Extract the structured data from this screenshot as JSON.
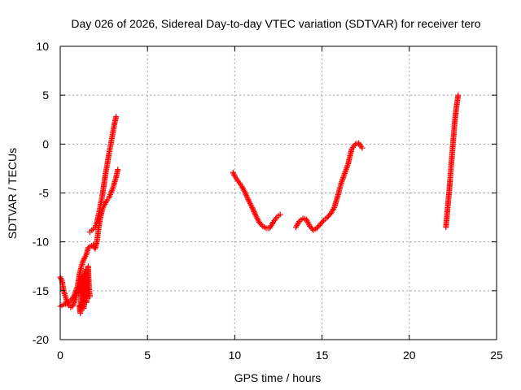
{
  "chart_data": {
    "type": "scatter",
    "title": "Day 026 of 2026, Sidereal Day-to-day VTEC variation (SDTVAR) for receiver tero",
    "xlabel": "GPS time / hours",
    "ylabel": "SDTVAR / TECUs",
    "xlim": [
      0,
      25
    ],
    "ylim": [
      -20,
      10
    ],
    "xticks": [
      "0",
      "5",
      "10",
      "15",
      "20",
      "25"
    ],
    "yticks": [
      "-20",
      "-15",
      "-10",
      "-5",
      "0",
      "5",
      "10"
    ],
    "grid": true,
    "marker": "plus",
    "colors": {
      "series": "#ff0000",
      "grid": "#a0a0a0",
      "axes": "#000000"
    },
    "series": [
      {
        "segments": [
          {
            "x": [
              0.0,
              0.1,
              0.2,
              0.3,
              0.4,
              0.5,
              0.6,
              0.7,
              0.8,
              0.9,
              1.0,
              1.1,
              1.2,
              1.3,
              1.4,
              1.5
            ],
            "y": [
              -13.6,
              -14.0,
              -15.0,
              -15.6,
              -16.2,
              -16.5,
              -16.7,
              -16.6,
              -16.2,
              -15.6,
              -15.0,
              -14.6,
              -14.2,
              -13.8,
              -13.2,
              -12.8
            ]
          },
          {
            "x": [
              0.0,
              0.2,
              0.4,
              0.6,
              0.8,
              1.0,
              1.1,
              1.2,
              1.3,
              1.4,
              1.5,
              1.6,
              1.7,
              1.8,
              1.9,
              2.0,
              2.1,
              2.2,
              2.3,
              2.4,
              2.5,
              2.6,
              2.7,
              2.8,
              2.9,
              3.0,
              3.1,
              3.2,
              3.3
            ],
            "y": [
              -16.6,
              -16.4,
              -16.3,
              -16.0,
              -15.5,
              -14.5,
              -13.3,
              -12.6,
              -12.0,
              -11.6,
              -11.3,
              -10.6,
              -10.5,
              -10.4,
              -10.3,
              -10.7,
              -10.0,
              -8.6,
              -7.5,
              -6.8,
              -6.3,
              -6.0,
              -5.7,
              -5.5,
              -5.0,
              -4.6,
              -4.0,
              -3.4,
              -2.6
            ]
          },
          {
            "x": [
              1.7,
              1.8,
              1.9,
              2.0,
              2.1,
              2.2,
              2.3,
              2.4,
              2.5,
              2.6,
              2.7,
              2.8,
              2.9,
              3.0,
              3.1,
              3.2
            ],
            "y": [
              -9.0,
              -8.8,
              -8.7,
              -8.5,
              -8.0,
              -7.2,
              -6.3,
              -5.4,
              -4.2,
              -3.0,
              -2.0,
              -0.9,
              0.0,
              1.0,
              2.0,
              2.8
            ]
          },
          {
            "x": [
              1.1,
              1.15,
              1.2,
              1.25,
              1.3,
              1.35,
              1.4,
              1.45,
              1.5,
              1.55,
              1.6,
              1.65,
              1.7
            ],
            "y": [
              -16.5,
              -17.3,
              -14.8,
              -13.5,
              -15.8,
              -16.8,
              -15.0,
              -13.2,
              -16.2,
              -14.2,
              -12.5,
              -14.6,
              -15.6
            ]
          },
          {
            "x": [
              9.9,
              10.0,
              10.2,
              10.4,
              10.6,
              10.8,
              11.0,
              11.2,
              11.4,
              11.6,
              11.8,
              12.0,
              12.2,
              12.4,
              12.6
            ],
            "y": [
              -2.9,
              -3.3,
              -3.8,
              -4.3,
              -5.0,
              -5.8,
              -6.5,
              -7.3,
              -8.0,
              -8.4,
              -8.6,
              -8.6,
              -8.0,
              -7.5,
              -7.2
            ]
          },
          {
            "x": [
              13.5,
              13.7,
              13.9,
              14.1,
              14.3,
              14.5,
              14.7,
              14.9,
              15.1,
              15.3,
              15.5,
              15.7,
              15.9,
              16.1,
              16.3,
              16.5,
              16.7,
              16.9,
              17.1,
              17.3
            ],
            "y": [
              -8.5,
              -7.9,
              -7.6,
              -7.7,
              -8.4,
              -8.8,
              -8.6,
              -8.2,
              -7.8,
              -7.5,
              -7.1,
              -6.5,
              -5.3,
              -4.0,
              -3.0,
              -2.0,
              -0.5,
              0.0,
              0.1,
              -0.4
            ]
          },
          {
            "x": [
              22.1,
              22.2,
              22.3,
              22.4,
              22.5,
              22.6,
              22.7,
              22.8
            ],
            "y": [
              -8.5,
              -6.5,
              -4.5,
              -2.2,
              0.0,
              2.2,
              3.8,
              5.0
            ]
          }
        ]
      }
    ]
  }
}
